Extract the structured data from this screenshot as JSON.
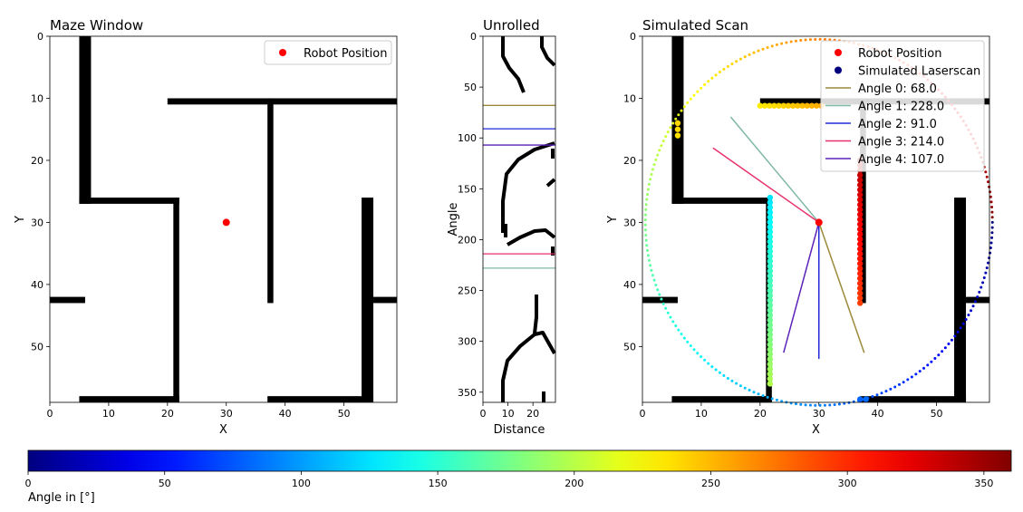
{
  "chart_data": [
    {
      "type": "heatmap",
      "title": "Maze Window",
      "xlabel": "X",
      "ylabel": "Y",
      "xlim": [
        0,
        59
      ],
      "ylim": [
        59,
        0
      ],
      "xticks": [
        0,
        10,
        20,
        30,
        40,
        50
      ],
      "yticks": [
        0,
        10,
        20,
        30,
        40,
        50
      ],
      "legend": {
        "placement": "top-right",
        "entries": [
          "Robot Position"
        ]
      },
      "robot_position": {
        "x": 30,
        "y": 30,
        "label": "Robot Position",
        "color": "#ff0000"
      },
      "walls": [
        [
          5,
          0,
          7,
          27
        ],
        [
          5,
          26,
          22,
          27
        ],
        [
          21,
          26,
          22,
          59
        ],
        [
          5,
          58,
          22,
          59
        ],
        [
          20,
          10,
          59,
          11
        ],
        [
          37,
          10,
          38,
          43
        ],
        [
          0,
          42,
          6,
          43
        ],
        [
          53,
          26,
          55,
          59
        ],
        [
          37,
          58,
          55,
          59
        ],
        [
          55,
          42,
          59,
          43
        ]
      ]
    },
    {
      "type": "heatmap",
      "title": "Unrolled",
      "xlabel": "Distance",
      "ylabel": "Angle",
      "xlim": [
        0,
        29
      ],
      "ylim": [
        360,
        0
      ],
      "xticks": [
        0,
        10,
        20
      ],
      "yticks": [
        0,
        50,
        100,
        150,
        200,
        250,
        300,
        350
      ],
      "angle_lines": [
        {
          "angle": 68.0,
          "color": "#9c8a3a"
        },
        {
          "angle": 228.0,
          "color": "#7fb8a4"
        },
        {
          "angle": 91.0,
          "color": "#1f2bd6"
        },
        {
          "angle": 214.0,
          "color": "#e8316b"
        },
        {
          "angle": 107.0,
          "color": "#5b22b8"
        }
      ]
    },
    {
      "type": "scatter",
      "title": "Simulated Scan",
      "xlabel": "X",
      "ylabel": "Y",
      "xlim": [
        0,
        59
      ],
      "ylim": [
        59,
        0
      ],
      "xticks": [
        0,
        10,
        20,
        30,
        40,
        50
      ],
      "yticks": [
        0,
        10,
        20,
        30,
        40,
        50
      ],
      "legend": {
        "placement": "top-right",
        "entries": [
          {
            "label": "Robot Position",
            "color": "#ff0000",
            "kind": "dot"
          },
          {
            "label": "Simulated Laserscan",
            "color": "#00007f",
            "kind": "dot"
          },
          {
            "label": "Angle 0: 68.0",
            "color": "#9c8a3a",
            "kind": "line"
          },
          {
            "label": "Angle 1: 228.0",
            "color": "#7fb8a4",
            "kind": "line"
          },
          {
            "label": "Angle 2: 91.0",
            "color": "#1f2bd6",
            "kind": "line"
          },
          {
            "label": "Angle 3: 214.0",
            "color": "#e8316b",
            "kind": "line"
          },
          {
            "label": "Angle 4: 107.0",
            "color": "#5b22b8",
            "kind": "line"
          }
        ]
      },
      "robot_position": {
        "x": 30,
        "y": 30
      },
      "scan_radius": 29.5,
      "rays": [
        {
          "angle": 68.0,
          "x2": 37.7,
          "y2": 51.0
        },
        {
          "angle": 228.0,
          "x2": 15.0,
          "y2": 13.0
        },
        {
          "angle": 91.0,
          "x2": 30.0,
          "y2": 52.0
        },
        {
          "angle": 214.0,
          "x2": 12.0,
          "y2": 18.0
        },
        {
          "angle": 107.0,
          "x2": 24.0,
          "y2": 51.0
        }
      ]
    },
    {
      "type": "colorbar",
      "label": "Angle in [°]",
      "range": [
        0,
        360
      ],
      "ticks": [
        0,
        50,
        100,
        150,
        200,
        250,
        300,
        350
      ],
      "colormap": "jet"
    }
  ]
}
